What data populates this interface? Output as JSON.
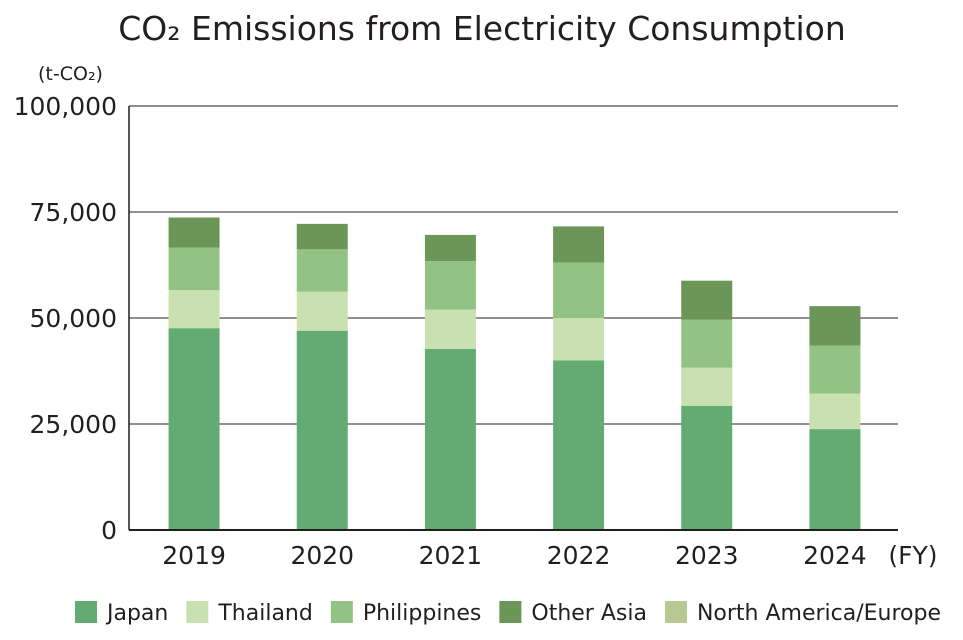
{
  "chart_data": {
    "type": "bar",
    "stacked": true,
    "title": "CO₂ Emissions from Electricity Consumption",
    "ylabel": "(t-CO₂)",
    "xlabel": "(FY)",
    "categories": [
      "2019",
      "2020",
      "2021",
      "2022",
      "2023",
      "2024"
    ],
    "ylim": [
      0,
      100000
    ],
    "yticks": [
      0,
      25000,
      50000,
      75000,
      100000
    ],
    "ytick_labels": [
      "0",
      "25,000",
      "50,000",
      "75,000",
      "100,000"
    ],
    "grid": true,
    "legend_position": "bottom",
    "series": [
      {
        "name": "Japan",
        "color": "#63ab72",
        "values": [
          47600,
          47000,
          42700,
          40000,
          29300,
          23800
        ]
      },
      {
        "name": "Thailand",
        "color": "#c9e0b0",
        "values": [
          9000,
          9200,
          9300,
          10000,
          9000,
          8400
        ]
      },
      {
        "name": "Philippines",
        "color": "#93c384",
        "values": [
          10000,
          10000,
          11400,
          13100,
          11300,
          11300
        ]
      },
      {
        "name": "Other Asia",
        "color": "#6c9658",
        "values": [
          7100,
          6000,
          6200,
          8500,
          9200,
          9300
        ]
      },
      {
        "name": "North America/Europe",
        "color": "#b7c993",
        "values": [
          0,
          0,
          0,
          0,
          0,
          0
        ]
      }
    ]
  }
}
